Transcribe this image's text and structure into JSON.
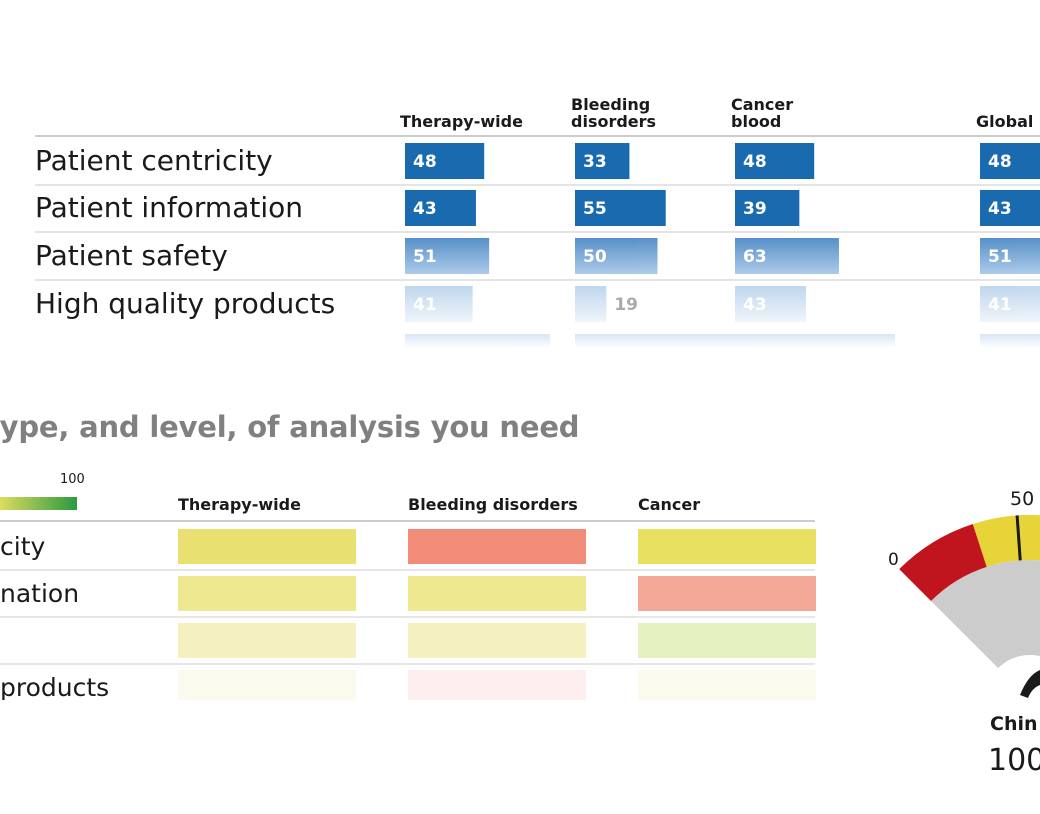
{
  "heading": "type, and level, of analysis you need",
  "chart_data": [
    {
      "type": "bar",
      "categories": [
        "Patient centricity",
        "Patient information",
        "Patient safety",
        "High quality products"
      ],
      "series": [
        {
          "name": "Therapy-wide",
          "values": [
            48,
            43,
            51,
            41
          ]
        },
        {
          "name": "Bleeding disorders",
          "values": [
            33,
            55,
            50,
            19
          ]
        },
        {
          "name": "Cancer blood",
          "values": [
            48,
            39,
            63,
            43
          ]
        },
        {
          "name": "Global",
          "values": [
            48,
            43,
            51,
            41
          ]
        }
      ],
      "colors": {
        "bar": "#1a6ab0",
        "bar_faded": "#a8c8e6",
        "value_text": "#ffffff"
      },
      "column_headers": [
        {
          "lines": [
            "Therapy-wide"
          ]
        },
        {
          "lines": [
            "Bleeding",
            "disorders"
          ]
        },
        {
          "lines": [
            "Cancer",
            "blood"
          ]
        },
        {
          "lines": [
            "Global"
          ]
        }
      ]
    },
    {
      "type": "heatmap",
      "legend": {
        "max_label": "100",
        "colors": [
          "#e8e060",
          "#2a9a40"
        ]
      },
      "row_labels": [
        "city",
        "nation",
        "",
        "products"
      ],
      "columns": [
        "Therapy-wide",
        "Bleeding disorders",
        "Cancer"
      ],
      "cell_colors": [
        [
          "#e8e070",
          "#f08c78",
          "#e8e060"
        ],
        [
          "#eee890",
          "#eee890",
          "#f4a898"
        ],
        [
          "#f4f0c0",
          "#f4f0c0",
          "#e4f0c0"
        ],
        [
          "#f8f6e4",
          "#fbe4e6",
          "#f8f6e4"
        ]
      ]
    },
    {
      "type": "gauge",
      "tick_labels": [
        "0",
        "50"
      ],
      "label": "Chin",
      "value_label": "100",
      "colors": {
        "low": "#c0151f",
        "mid": "#e6d438",
        "background": "#cccccc",
        "needle": "#1a1a1a"
      }
    }
  ]
}
